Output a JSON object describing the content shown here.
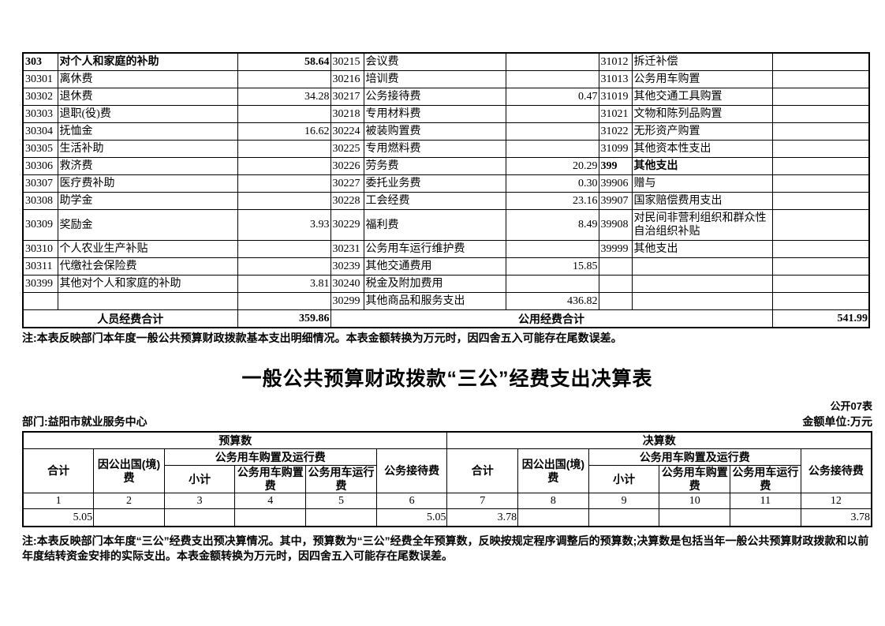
{
  "table1": {
    "rows": [
      [
        "303",
        "对个人和家庭的补助",
        "58.64",
        "30215",
        "会议费",
        "",
        "31012",
        "拆迁补偿",
        ""
      ],
      [
        "30301",
        "离休费",
        "",
        "30216",
        "培训费",
        "",
        "31013",
        "公务用车购置",
        ""
      ],
      [
        "30302",
        "退休费",
        "34.28",
        "30217",
        "公务接待费",
        "0.47",
        "31019",
        "其他交通工具购置",
        ""
      ],
      [
        "30303",
        "退职(役)费",
        "",
        "30218",
        "专用材料费",
        "",
        "31021",
        "文物和陈列品购置",
        ""
      ],
      [
        "30304",
        "抚恤金",
        "16.62",
        "30224",
        "被装购置费",
        "",
        "31022",
        "无形资产购置",
        ""
      ],
      [
        "30305",
        "生活补助",
        "",
        "30225",
        "专用燃料费",
        "",
        "31099",
        "其他资本性支出",
        ""
      ],
      [
        "30306",
        "救济费",
        "",
        "30226",
        "劳务费",
        "20.29",
        "399",
        "其他支出",
        ""
      ],
      [
        "30307",
        "医疗费补助",
        "",
        "30227",
        "委托业务费",
        "0.30",
        "39906",
        "赠与",
        ""
      ],
      [
        "30308",
        "助学金",
        "",
        "30228",
        "工会经费",
        "23.16",
        "39907",
        "国家赔偿费用支出",
        ""
      ],
      [
        "30309",
        "奖励金",
        "3.93",
        "30229",
        "福利费",
        "8.49",
        "39908",
        "对民间非营利组织和群众性自治组织补贴",
        ""
      ],
      [
        "30310",
        "个人农业生产补贴",
        "",
        "30231",
        "公务用车运行维护费",
        "",
        "39999",
        "其他支出",
        ""
      ],
      [
        "30311",
        "代缴社会保险费",
        "",
        "30239",
        "其他交通费用",
        "15.85",
        "",
        "",
        ""
      ],
      [
        "30399",
        "其他对个人和家庭的补助",
        "3.81",
        "30240",
        "税金及附加费用",
        "",
        "",
        "",
        ""
      ],
      [
        "",
        "",
        "",
        "30299",
        "其他商品和服务支出",
        "436.82",
        "",
        "",
        ""
      ]
    ],
    "bold_cells": {
      "0": [
        0,
        1,
        2
      ],
      "6": [
        6,
        7
      ]
    },
    "tall_rows": [
      9
    ],
    "totals": {
      "personnel_label": "人员经费合计",
      "personnel_value": "359.86",
      "public_label": "公用经费合计",
      "public_value": "541.99"
    },
    "note": "注:本表反映部门本年度一般公共预算财政拨款基本支出明细情况。本表金额转换为万元时，因四舍五入可能存在尾数误差。"
  },
  "table2": {
    "title": "一般公共预算财政拨款“三公”经费支出决算表",
    "form_label": "公开07表",
    "department": "部门:益阳市就业服务中心",
    "unit": "金额单位:万元",
    "header": {
      "budget": "预算数",
      "final": "决算数",
      "total": "合计",
      "abroad": "因公出国(境)费",
      "vehicle_group": "公务用车购置及运行费",
      "subtotal": "小计",
      "purchase": "公务用车购置费",
      "operation": "公务用车运行费",
      "reception": "公务接待费"
    },
    "col_numbers": [
      "1",
      "2",
      "3",
      "4",
      "5",
      "6",
      "7",
      "8",
      "9",
      "10",
      "11",
      "12"
    ],
    "data_row": [
      "5.05",
      "",
      "",
      "",
      "",
      "5.05",
      "3.78",
      "",
      "",
      "",
      "",
      "3.78"
    ],
    "note": "注:本表反映部门本年度“三公”经费支出预决算情况。其中，预算数为“三公”经费全年预算数，反映按规定程序调整后的预算数;决算数是包括当年一般公共预算财政拨款和以前年度结转资金安排的实际支出。本表金额转换为万元时，因四舍五入可能存在尾数误差。"
  }
}
